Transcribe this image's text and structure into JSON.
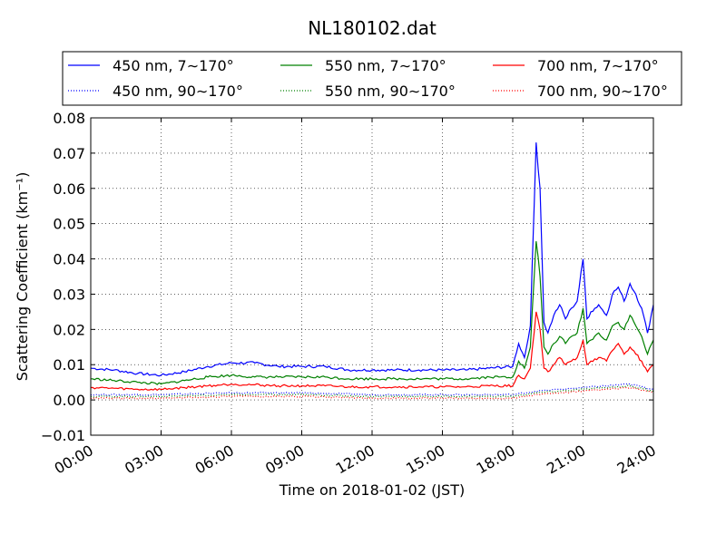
{
  "chart_data": {
    "type": "line",
    "title": "NL180102.dat",
    "xlabel": "Time on 2018-01-02 (JST)",
    "ylabel": "Scattering Coefficient (km⁻¹)",
    "xlim": [
      "00:00",
      "24:00"
    ],
    "ylim": [
      -0.01,
      0.08
    ],
    "yticks": [
      -0.01,
      0.0,
      0.01,
      0.02,
      0.03,
      0.04,
      0.05,
      0.06,
      0.07,
      0.08
    ],
    "ytick_labels": [
      "−0.01",
      "0.00",
      "0.01",
      "0.02",
      "0.03",
      "0.04",
      "0.05",
      "0.06",
      "0.07",
      "0.08"
    ],
    "xtick_labels": [
      "00:00",
      "03:00",
      "06:00",
      "09:00",
      "12:00",
      "15:00",
      "18:00",
      "21:00",
      "24:00"
    ],
    "grid": true,
    "legend_position": "top (above plot)",
    "series": [
      {
        "name": "450 nm, 7∼170°",
        "color": "#0000ff",
        "style": "solid",
        "x": [
          "00:00",
          "01:00",
          "02:00",
          "03:00",
          "04:00",
          "05:00",
          "06:00",
          "07:00",
          "08:00",
          "09:00",
          "10:00",
          "11:00",
          "12:00",
          "13:00",
          "14:00",
          "15:00",
          "16:00",
          "17:00",
          "18:00",
          "18:15",
          "18:30",
          "18:45",
          "19:00",
          "19:10",
          "19:20",
          "19:30",
          "19:45",
          "20:00",
          "20:15",
          "20:30",
          "20:45",
          "21:00",
          "21:10",
          "21:20",
          "21:40",
          "22:00",
          "22:15",
          "22:30",
          "22:45",
          "23:00",
          "23:15",
          "23:30",
          "23:45",
          "24:00"
        ],
        "y": [
          0.009,
          0.0085,
          0.0075,
          0.007,
          0.008,
          0.0095,
          0.0105,
          0.0105,
          0.0095,
          0.0095,
          0.0095,
          0.0085,
          0.0085,
          0.0085,
          0.0085,
          0.0085,
          0.0085,
          0.009,
          0.0095,
          0.016,
          0.012,
          0.021,
          0.073,
          0.06,
          0.022,
          0.019,
          0.024,
          0.027,
          0.023,
          0.026,
          0.028,
          0.04,
          0.023,
          0.025,
          0.027,
          0.024,
          0.03,
          0.032,
          0.028,
          0.033,
          0.03,
          0.026,
          0.019,
          0.027
        ]
      },
      {
        "name": "450 nm, 90∼170°",
        "color": "#0000ff",
        "style": "dotted",
        "x": [
          "00:00",
          "03:00",
          "06:00",
          "09:00",
          "12:00",
          "15:00",
          "18:00",
          "19:00",
          "20:00",
          "21:00",
          "22:00",
          "23:00",
          "24:00"
        ],
        "y": [
          0.0015,
          0.0015,
          0.002,
          0.002,
          0.0015,
          0.0015,
          0.0015,
          0.0025,
          0.003,
          0.0035,
          0.004,
          0.0045,
          0.003
        ]
      },
      {
        "name": "550 nm, 7∼170°",
        "color": "#008000",
        "style": "solid",
        "x": [
          "00:00",
          "01:00",
          "02:00",
          "03:00",
          "04:00",
          "05:00",
          "06:00",
          "07:00",
          "08:00",
          "09:00",
          "10:00",
          "11:00",
          "12:00",
          "13:00",
          "14:00",
          "15:00",
          "16:00",
          "17:00",
          "18:00",
          "18:15",
          "18:30",
          "18:45",
          "19:00",
          "19:10",
          "19:20",
          "19:30",
          "19:45",
          "20:00",
          "20:15",
          "20:30",
          "20:45",
          "21:00",
          "21:10",
          "21:20",
          "21:40",
          "22:00",
          "22:15",
          "22:30",
          "22:45",
          "23:00",
          "23:15",
          "23:30",
          "23:45",
          "24:00"
        ],
        "y": [
          0.006,
          0.0055,
          0.005,
          0.0045,
          0.0055,
          0.0065,
          0.007,
          0.0065,
          0.0065,
          0.0065,
          0.0065,
          0.006,
          0.006,
          0.006,
          0.006,
          0.006,
          0.006,
          0.0065,
          0.0065,
          0.011,
          0.009,
          0.015,
          0.045,
          0.035,
          0.015,
          0.013,
          0.016,
          0.018,
          0.016,
          0.018,
          0.019,
          0.026,
          0.016,
          0.017,
          0.019,
          0.017,
          0.021,
          0.022,
          0.02,
          0.024,
          0.021,
          0.018,
          0.013,
          0.017
        ]
      },
      {
        "name": "550 nm, 90∼170°",
        "color": "#008000",
        "style": "dotted",
        "x": [
          "00:00",
          "03:00",
          "06:00",
          "09:00",
          "12:00",
          "15:00",
          "18:00",
          "19:00",
          "20:00",
          "21:00",
          "22:00",
          "23:00",
          "24:00"
        ],
        "y": [
          0.001,
          0.001,
          0.0015,
          0.0015,
          0.001,
          0.001,
          0.001,
          0.002,
          0.0025,
          0.003,
          0.0035,
          0.004,
          0.0025
        ]
      },
      {
        "name": "700 nm, 7∼170°",
        "color": "#ff0000",
        "style": "solid",
        "x": [
          "00:00",
          "01:00",
          "02:00",
          "03:00",
          "04:00",
          "05:00",
          "06:00",
          "07:00",
          "08:00",
          "09:00",
          "10:00",
          "11:00",
          "12:00",
          "13:00",
          "14:00",
          "15:00",
          "16:00",
          "17:00",
          "18:00",
          "18:15",
          "18:30",
          "18:45",
          "19:00",
          "19:10",
          "19:20",
          "19:30",
          "19:45",
          "20:00",
          "20:15",
          "20:30",
          "20:45",
          "21:00",
          "21:10",
          "21:20",
          "21:40",
          "22:00",
          "22:15",
          "22:30",
          "22:45",
          "23:00",
          "23:15",
          "23:30",
          "23:45",
          "24:00"
        ],
        "y": [
          0.0035,
          0.0033,
          0.003,
          0.003,
          0.0035,
          0.004,
          0.0045,
          0.0043,
          0.004,
          0.004,
          0.004,
          0.0037,
          0.0037,
          0.0037,
          0.0037,
          0.0037,
          0.0037,
          0.004,
          0.004,
          0.007,
          0.006,
          0.009,
          0.025,
          0.02,
          0.009,
          0.008,
          0.01,
          0.012,
          0.01,
          0.011,
          0.012,
          0.017,
          0.01,
          0.011,
          0.012,
          0.011,
          0.014,
          0.016,
          0.013,
          0.015,
          0.013,
          0.011,
          0.008,
          0.01
        ]
      },
      {
        "name": "700 nm, 90∼170°",
        "color": "#ff0000",
        "style": "dotted",
        "x": [
          "00:00",
          "03:00",
          "06:00",
          "09:00",
          "12:00",
          "15:00",
          "18:00",
          "19:00",
          "20:00",
          "21:00",
          "22:00",
          "23:00",
          "24:00"
        ],
        "y": [
          0.0005,
          0.0005,
          0.001,
          0.001,
          0.0005,
          0.0005,
          0.0005,
          0.0015,
          0.002,
          0.0025,
          0.003,
          0.0035,
          0.002
        ]
      }
    ]
  }
}
